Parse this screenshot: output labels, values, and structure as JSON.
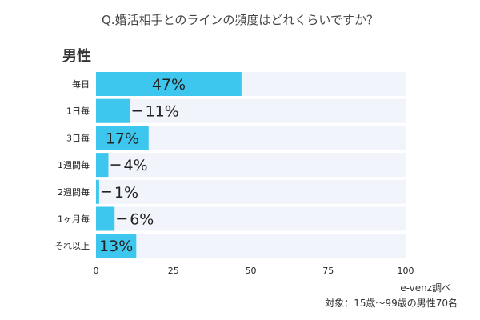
{
  "header": {
    "title": "Q.婚活相手とのラインの頻度はどれくらいですか？"
  },
  "gender_label": "男性",
  "footer": {
    "source": "e-venz調べ",
    "subject": "対象：15歳〜99歳の男性70名"
  },
  "colors": {
    "bar": "#3ec7ee",
    "track": "#f2f4fb",
    "accent": "#3ec7ee",
    "text": "#222222",
    "axis": "#777777"
  },
  "chart_data": {
    "type": "bar",
    "orientation": "horizontal",
    "title": "Q.婚活相手とのラインの頻度はどれくらいですか？",
    "categories": [
      "毎日",
      "1日毎",
      "3日毎",
      "1週間毎",
      "2週間毎",
      "1ヶ月毎",
      "それ以上"
    ],
    "values": [
      47,
      11,
      17,
      4,
      1,
      6,
      13
    ],
    "value_labels": [
      "47%",
      "11%",
      "17%",
      "4%",
      "1%",
      "6%",
      "13%"
    ],
    "xlim": [
      0,
      100
    ],
    "xticks": [
      0,
      25,
      50,
      75,
      100
    ],
    "xtick_labels": [
      "0",
      "25",
      "50",
      "75",
      "100"
    ],
    "xlabel": "",
    "ylabel": "",
    "grid": false,
    "legend": "none"
  }
}
